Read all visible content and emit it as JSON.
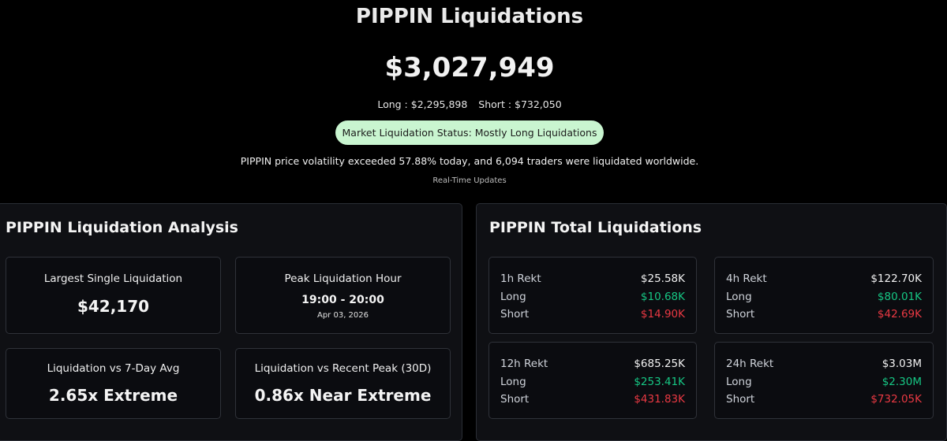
{
  "header": {
    "title": "PIPPIN Liquidations",
    "total": "$3,027,949",
    "long_text": "Long : $2,295,898",
    "short_text": "Short : $732,050",
    "status": "Market Liquidation Status: Mostly Long Liquidations",
    "summary": "PIPPIN price volatility exceeded 57.88% today, and 6,094 traders were liquidated worldwide.",
    "realtime": "Real-Time Updates"
  },
  "analysis": {
    "title": "PIPPIN Liquidation Analysis",
    "cards": [
      {
        "label": "Largest Single Liquidation",
        "value": "$42,170"
      },
      {
        "label": "Peak Liquidation Hour",
        "value": "19:00 - 20:00",
        "sub": "Apr 03, 2026"
      },
      {
        "label": "Liquidation vs 7-Day Avg",
        "value": "2.65x Extreme"
      },
      {
        "label": "Liquidation vs Recent Peak (30D)",
        "value": "0.86x Near Extreme"
      }
    ]
  },
  "totals": {
    "title": "PIPPIN Total Liquidations",
    "cards": [
      {
        "period": "1h Rekt",
        "total": "$25.58K",
        "long_label": "Long",
        "long": "$10.68K",
        "short_label": "Short",
        "short": "$14.90K"
      },
      {
        "period": "4h Rekt",
        "total": "$122.70K",
        "long_label": "Long",
        "long": "$80.01K",
        "short_label": "Short",
        "short": "$42.69K"
      },
      {
        "period": "12h Rekt",
        "total": "$685.25K",
        "long_label": "Long",
        "long": "$253.41K",
        "short_label": "Short",
        "short": "$431.83K"
      },
      {
        "period": "24h Rekt",
        "total": "$3.03M",
        "long_label": "Long",
        "long": "$2.30M",
        "short_label": "Short",
        "short": "$732.05K"
      }
    ]
  },
  "colors": {
    "long": "#16c784",
    "short": "#ea3943",
    "status_bg": "#c9f5d0"
  }
}
